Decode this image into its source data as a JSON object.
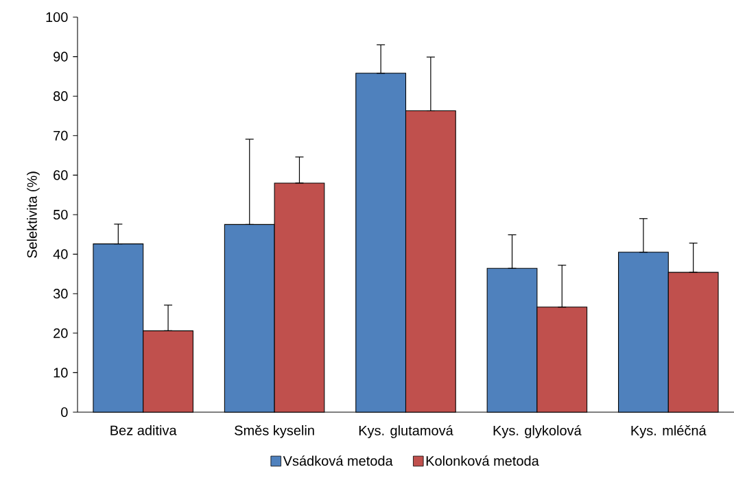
{
  "chart_data": {
    "type": "bar",
    "ylabel": "Selektivita (%)",
    "categories": [
      "Bez aditiva",
      "Směs kyselin",
      "Kys. glutamová",
      "Kys. glykolová",
      "Kys. mléčná"
    ],
    "series": [
      {
        "name": "Vsádková metoda",
        "color": "#4f81bd",
        "values": [
          42.6,
          47.5,
          85.8,
          36.4,
          40.5
        ],
        "errors": [
          [
            42.6,
            47.6
          ],
          [
            47.5,
            69.1
          ],
          [
            85.8,
            93.0
          ],
          [
            36.4,
            44.9
          ],
          [
            40.5,
            49.0
          ]
        ]
      },
      {
        "name": "Kolonková metoda",
        "color": "#c0504d",
        "values": [
          20.6,
          58.0,
          76.3,
          26.6,
          35.4
        ],
        "errors": [
          [
            20.6,
            27.1
          ],
          [
            58.0,
            64.6
          ],
          [
            76.3,
            89.9
          ],
          [
            26.6,
            37.2
          ],
          [
            35.4,
            42.8
          ]
        ]
      }
    ],
    "ylim": [
      0,
      100
    ],
    "yticks": [
      0,
      10,
      20,
      30,
      40,
      50,
      60,
      70,
      80,
      90,
      100
    ],
    "legend": "bottom"
  }
}
